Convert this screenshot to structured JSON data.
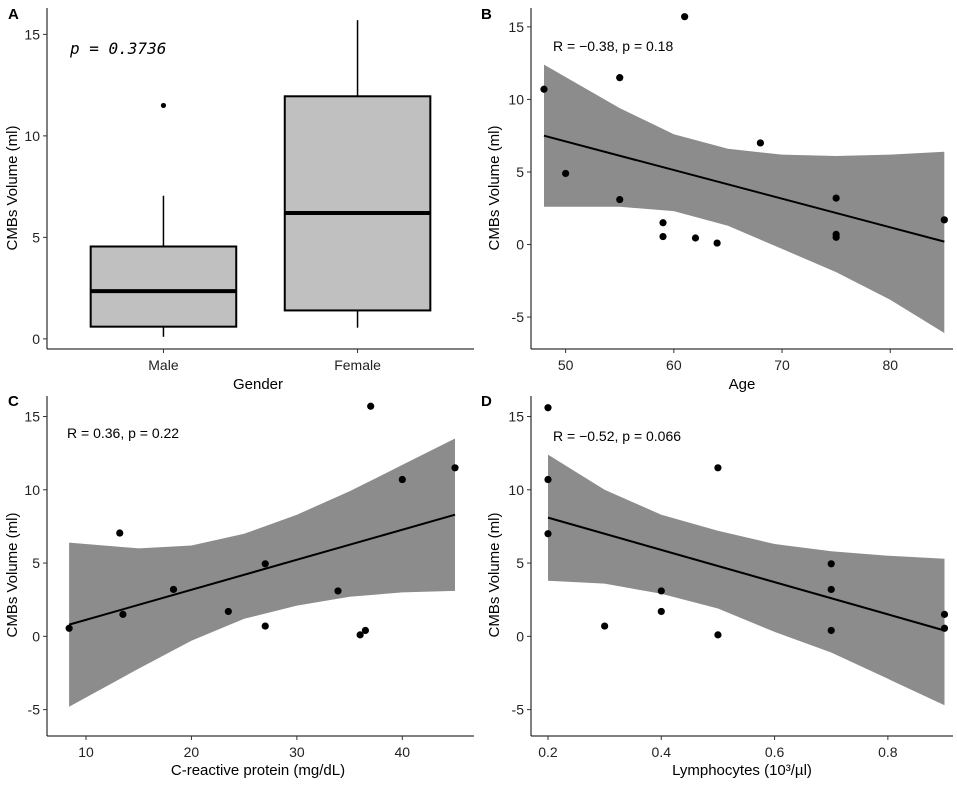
{
  "chart_data": [
    {
      "panel": "A",
      "type": "box",
      "xlabel": "Gender",
      "ylabel": "CMBs Volume (ml)",
      "annotation": "p = 0.3736",
      "yticks": [
        "0",
        "5",
        "10",
        "15"
      ],
      "ylim": [
        -0.5,
        16.3
      ],
      "categories": [
        "Male",
        "Female"
      ],
      "boxes": [
        {
          "name": "Male",
          "lower_whisker": 0.1,
          "q1": 0.6,
          "median": 2.35,
          "q3": 4.55,
          "upper_whisker": 7.05,
          "outliers": [
            11.5
          ]
        },
        {
          "name": "Female",
          "lower_whisker": 0.55,
          "q1": 1.4,
          "median": 6.2,
          "q3": 11.95,
          "upper_whisker": 15.7,
          "outliers": []
        }
      ],
      "colors": {
        "box_fill": "#c0c0c0",
        "line": "#000000"
      }
    },
    {
      "panel": "B",
      "type": "scatter",
      "xlabel": "Age",
      "ylabel": "CMBs Volume (ml)",
      "annotation_r": "R = −0.38, p = 0.18",
      "xticks": [
        "50",
        "60",
        "70",
        "80"
      ],
      "yticks": [
        "-5",
        "0",
        "5",
        "10",
        "15"
      ],
      "xlim": [
        46.8,
        85.8
      ],
      "ylim": [
        -7.2,
        16.3
      ],
      "points": [
        {
          "x": 48,
          "y": 10.7
        },
        {
          "x": 50,
          "y": 4.9
        },
        {
          "x": 55,
          "y": 11.5
        },
        {
          "x": 55,
          "y": 3.1
        },
        {
          "x": 59,
          "y": 1.5
        },
        {
          "x": 59,
          "y": 0.55
        },
        {
          "x": 61,
          "y": 15.7
        },
        {
          "x": 62,
          "y": 0.45
        },
        {
          "x": 64,
          "y": 0.1
        },
        {
          "x": 68,
          "y": 7.0
        },
        {
          "x": 75,
          "y": 3.2
        },
        {
          "x": 75,
          "y": 0.7
        },
        {
          "x": 75,
          "y": 0.5
        },
        {
          "x": 85,
          "y": 1.7
        }
      ],
      "fit": {
        "x": [
          48,
          85
        ],
        "y": [
          7.5,
          0.2
        ]
      },
      "band": {
        "x": [
          48,
          55,
          60,
          65,
          70,
          75,
          80,
          85
        ],
        "upper": [
          12.4,
          9.4,
          7.6,
          6.6,
          6.2,
          6.1,
          6.2,
          6.4
        ],
        "lower": [
          2.6,
          2.6,
          2.3,
          1.3,
          -0.3,
          -1.9,
          -3.8,
          -6.1
        ]
      },
      "colors": {
        "band": "#8c8c8c",
        "line": "#000000"
      }
    },
    {
      "panel": "C",
      "type": "scatter",
      "xlabel": "C-reactive protein (mg/dL)",
      "ylabel": "CMBs Volume (ml)",
      "annotation_r": "R = 0.36, p = 0.22",
      "xticks": [
        "10",
        "20",
        "30",
        "40"
      ],
      "yticks": [
        "-5",
        "0",
        "5",
        "10",
        "15"
      ],
      "xlim": [
        6.3,
        46.8
      ],
      "ylim": [
        -6.8,
        16.4
      ],
      "points": [
        {
          "x": 8.4,
          "y": 0.55
        },
        {
          "x": 13.2,
          "y": 7.05
        },
        {
          "x": 13.5,
          "y": 1.5
        },
        {
          "x": 18.3,
          "y": 3.2
        },
        {
          "x": 23.5,
          "y": 1.7
        },
        {
          "x": 27.0,
          "y": 4.95
        },
        {
          "x": 27.0,
          "y": 0.7
        },
        {
          "x": 33.9,
          "y": 3.1
        },
        {
          "x": 36.0,
          "y": 0.1
        },
        {
          "x": 36.5,
          "y": 0.4
        },
        {
          "x": 37.0,
          "y": 15.7
        },
        {
          "x": 40.0,
          "y": 10.7
        },
        {
          "x": 45.0,
          "y": 11.5
        }
      ],
      "fit": {
        "x": [
          8.4,
          45.0
        ],
        "y": [
          0.8,
          8.3
        ]
      },
      "band": {
        "x": [
          8.4,
          15,
          20,
          25,
          30,
          35,
          40,
          45
        ],
        "upper": [
          6.4,
          6.0,
          6.2,
          7.0,
          8.3,
          9.9,
          11.7,
          13.5
        ],
        "lower": [
          -4.8,
          -2.2,
          -0.3,
          1.2,
          2.1,
          2.7,
          3.0,
          3.1
        ]
      },
      "colors": {
        "band": "#8c8c8c",
        "line": "#000000"
      }
    },
    {
      "panel": "D",
      "type": "scatter",
      "xlabel": "Lymphocytes (10³/µl)",
      "ylabel": "CMBs Volume (ml)",
      "annotation_r": "R = −0.52, p = 0.066",
      "xticks": [
        "0.2",
        "0.4",
        "0.6",
        "0.8"
      ],
      "yticks": [
        "-5",
        "0",
        "5",
        "10",
        "15"
      ],
      "xlim": [
        0.17,
        0.915
      ],
      "ylim": [
        -6.8,
        16.4
      ],
      "points": [
        {
          "x": 0.2,
          "y": 15.6
        },
        {
          "x": 0.2,
          "y": 10.7
        },
        {
          "x": 0.2,
          "y": 7.0
        },
        {
          "x": 0.3,
          "y": 0.7
        },
        {
          "x": 0.4,
          "y": 3.1
        },
        {
          "x": 0.4,
          "y": 1.7
        },
        {
          "x": 0.5,
          "y": 11.5
        },
        {
          "x": 0.5,
          "y": 0.1
        },
        {
          "x": 0.7,
          "y": 4.95
        },
        {
          "x": 0.7,
          "y": 3.2
        },
        {
          "x": 0.7,
          "y": 0.4
        },
        {
          "x": 0.9,
          "y": 1.5
        },
        {
          "x": 0.9,
          "y": 0.55
        }
      ],
      "fit": {
        "x": [
          0.2,
          0.9
        ],
        "y": [
          8.1,
          0.4
        ]
      },
      "band": {
        "x": [
          0.2,
          0.3,
          0.4,
          0.5,
          0.6,
          0.7,
          0.8,
          0.9
        ],
        "upper": [
          12.4,
          10.0,
          8.3,
          7.2,
          6.3,
          5.8,
          5.5,
          5.3
        ],
        "lower": [
          3.8,
          3.6,
          2.9,
          1.9,
          0.3,
          -1.1,
          -2.9,
          -4.7
        ]
      },
      "colors": {
        "band": "#8c8c8c",
        "line": "#000000"
      }
    }
  ]
}
